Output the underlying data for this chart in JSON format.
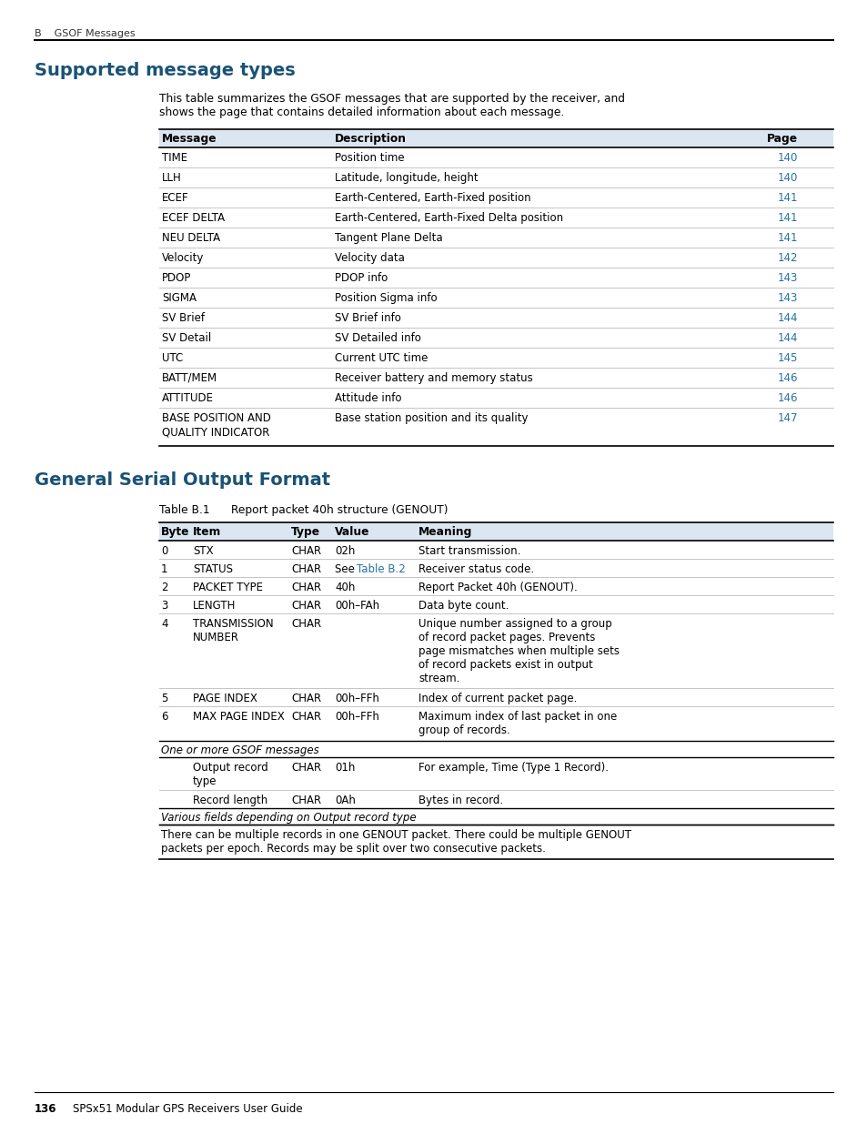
{
  "bg_color": "#ffffff",
  "header_text": "B    GSOF Messages",
  "section1_title": "Supported message types",
  "section1_intro": "This table summarizes the GSOF messages that are supported by the receiver, and\nshows the page that contains detailed information about each message.",
  "table1_headers": [
    "Message",
    "Description",
    "Page"
  ],
  "table1_rows": [
    [
      "TIME",
      "Position time",
      "140"
    ],
    [
      "LLH",
      "Latitude, longitude, height",
      "140"
    ],
    [
      "ECEF",
      "Earth-Centered, Earth-Fixed position",
      "141"
    ],
    [
      "ECEF DELTA",
      "Earth-Centered, Earth-Fixed Delta position",
      "141"
    ],
    [
      "NEU DELTA",
      "Tangent Plane Delta",
      "141"
    ],
    [
      "Velocity",
      "Velocity data",
      "142"
    ],
    [
      "PDOP",
      "PDOP info",
      "143"
    ],
    [
      "SIGMA",
      "Position Sigma info",
      "143"
    ],
    [
      "SV Brief",
      "SV Brief info",
      "144"
    ],
    [
      "SV Detail",
      "SV Detailed info",
      "144"
    ],
    [
      "UTC",
      "Current UTC time",
      "145"
    ],
    [
      "BATT/MEM",
      "Receiver battery and memory status",
      "146"
    ],
    [
      "ATTITUDE",
      "Attitude info",
      "146"
    ],
    [
      "BASE POSITION AND\nQUALITY INDICATOR",
      "Base station position and its quality",
      "147"
    ]
  ],
  "section2_title": "General Serial Output Format",
  "table2_caption": "Table B.1      Report packet 40h structure (GENOUT)",
  "table2_headers": [
    "Byte",
    "Item",
    "Type",
    "Value",
    "Meaning"
  ],
  "table2_rows": [
    [
      "0",
      "STX",
      "CHAR",
      "02h",
      "Start transmission."
    ],
    [
      "1",
      "STATUS",
      "CHAR",
      "See Table B.2",
      "Receiver status code."
    ],
    [
      "2",
      "PACKET TYPE",
      "CHAR",
      "40h",
      "Report Packet 40h (GENOUT)."
    ],
    [
      "3",
      "LENGTH",
      "CHAR",
      "00h–FAh",
      "Data byte count."
    ],
    [
      "4",
      "TRANSMISSION\nNUMBER",
      "CHAR",
      "",
      "Unique number assigned to a group\nof record packet pages. Prevents\npage mismatches when multiple sets\nof record packets exist in output\nstream."
    ],
    [
      "5",
      "PAGE INDEX",
      "CHAR",
      "00h–FFh",
      "Index of current packet page."
    ],
    [
      "6",
      "MAX PAGE INDEX",
      "CHAR",
      "00h–FFh",
      "Maximum index of last packet in one\ngroup of records."
    ]
  ],
  "table2_special_rows": [
    {
      "type": "italic_header",
      "text": "One or more GSOF messages"
    },
    {
      "type": "data",
      "cols": [
        "",
        "Output record\ntype",
        "CHAR",
        "01h",
        "For example, Time (Type 1 Record)."
      ]
    },
    {
      "type": "data",
      "cols": [
        "",
        "Record length",
        "CHAR",
        "0Ah",
        "Bytes in record."
      ]
    },
    {
      "type": "italic_header",
      "text": "Various fields depending on Output record type"
    },
    {
      "type": "note",
      "text": "There can be multiple records in one GENOUT packet. There could be multiple GENOUT\npackets per epoch. Records may be split over two consecutive packets."
    }
  ],
  "footer_text": "136    SPSx51 Modular GPS Receivers User Guide",
  "blue_color": "#1a5276",
  "link_color": "#2471a3",
  "header_color": "#dce6f1",
  "text_color": "#000000"
}
